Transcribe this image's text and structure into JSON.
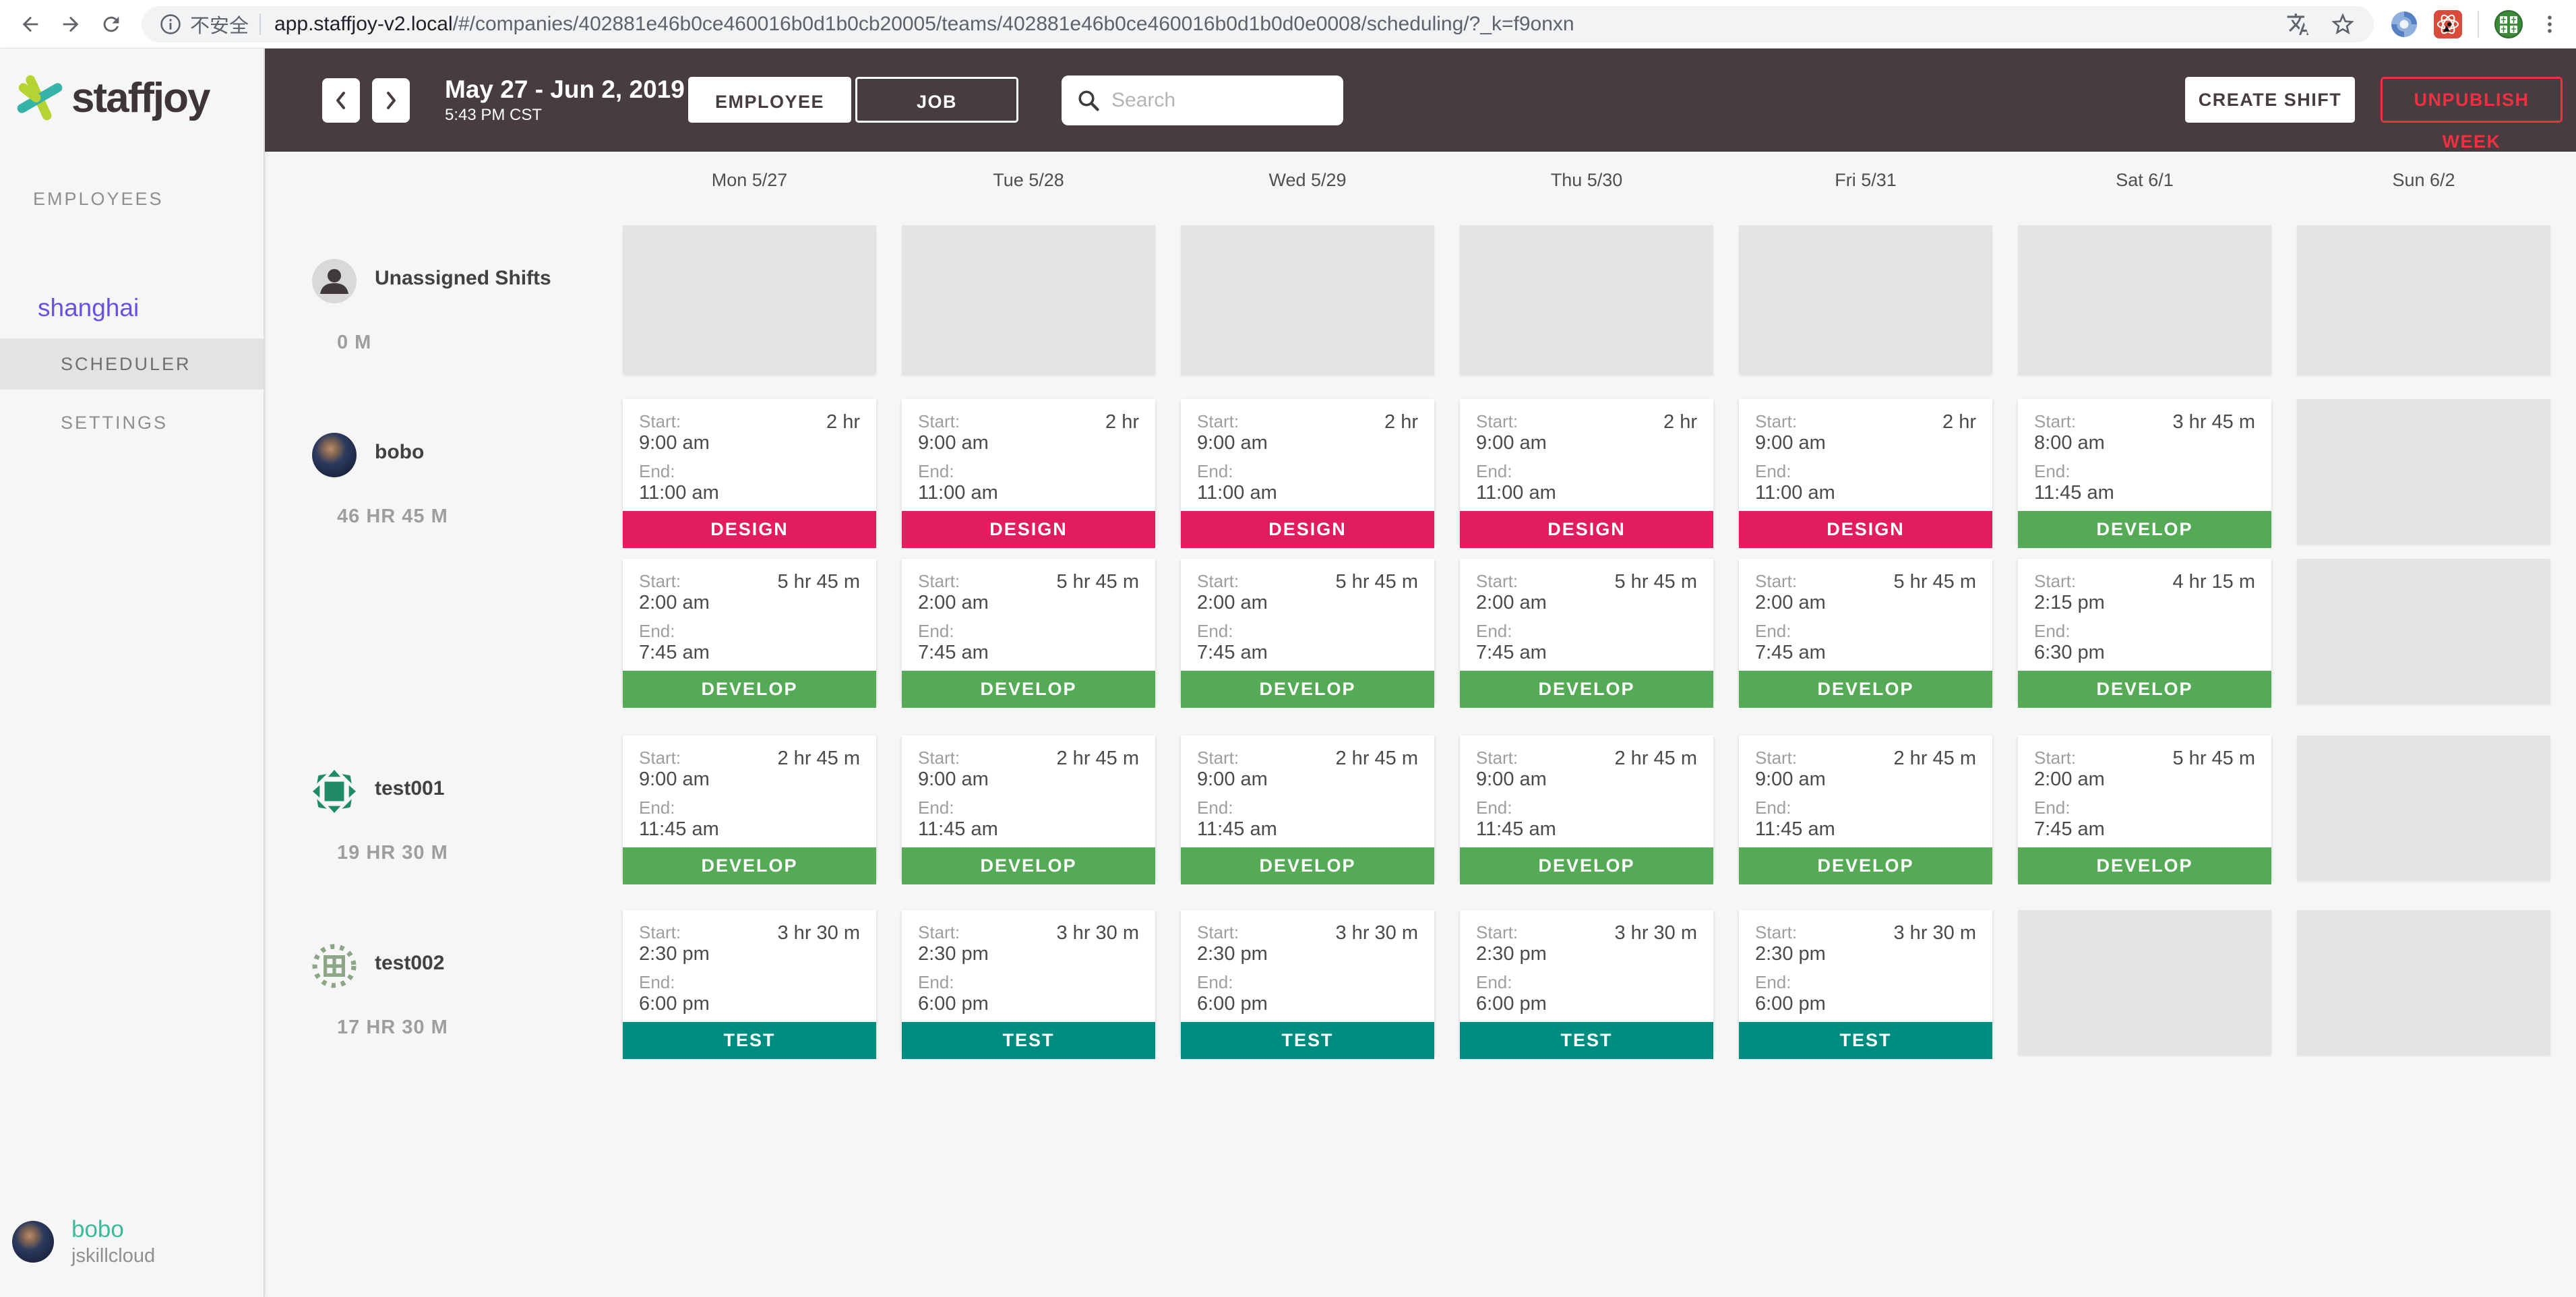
{
  "browser": {
    "security_label": "不安全",
    "url_host": "app.staffjoy-v2.local",
    "url_path": "/#/companies/402881e46b0ce460016b0d1b0cb20005/teams/402881e46b0ce460016b0d1b0d0e0008/scheduling/?_k=f9onxn"
  },
  "sidebar": {
    "logo_text": "staffjoy",
    "employees_label": "EMPLOYEES",
    "team_name": "shanghai",
    "scheduler_label": "SCHEDULER",
    "settings_label": "SETTINGS",
    "user": {
      "name": "bobo",
      "handle": "jskillcloud"
    }
  },
  "header": {
    "date_range": "May 27 - Jun 2, 2019",
    "current_time": "5:43 PM CST",
    "employee_toggle": "EMPLOYEE",
    "job_toggle": "JOB",
    "search_placeholder": "Search",
    "create_shift": "CREATE SHIFT",
    "unpublish_week": "UNPUBLISH WEEK"
  },
  "schedule": {
    "days": [
      "Mon 5/27",
      "Tue 5/28",
      "Wed 5/29",
      "Thu 5/30",
      "Fri 5/31",
      "Sat 6/1",
      "Sun 6/2"
    ],
    "start_label": "Start:",
    "end_label": "End:",
    "job_colors": {
      "DESIGN": "#e11d60",
      "DEVELOP": "#55ab55",
      "TEST": "#008d7f"
    },
    "rows": [
      {
        "id": "unassigned",
        "name": "Unassigned Shifts",
        "hours": "0 M",
        "avatar": "silhouette",
        "columns": [
          [
            {
              "type": "placeholder"
            }
          ],
          [
            {
              "type": "placeholder"
            }
          ],
          [
            {
              "type": "placeholder"
            }
          ],
          [
            {
              "type": "placeholder"
            }
          ],
          [
            {
              "type": "placeholder"
            }
          ],
          [
            {
              "type": "placeholder"
            }
          ],
          [
            {
              "type": "placeholder"
            }
          ]
        ]
      },
      {
        "id": "bobo",
        "name": "bobo",
        "hours": "46 HR 45 M",
        "avatar": "photo",
        "columns": [
          [
            {
              "type": "shift",
              "start": "9:00 am",
              "end": "11:00 am",
              "duration": "2 hr",
              "job": "DESIGN"
            },
            {
              "type": "shift",
              "start": "2:00 am",
              "end": "7:45 am",
              "duration": "5 hr 45 m",
              "job": "DEVELOP"
            }
          ],
          [
            {
              "type": "shift",
              "start": "9:00 am",
              "end": "11:00 am",
              "duration": "2 hr",
              "job": "DESIGN"
            },
            {
              "type": "shift",
              "start": "2:00 am",
              "end": "7:45 am",
              "duration": "5 hr 45 m",
              "job": "DEVELOP"
            }
          ],
          [
            {
              "type": "shift",
              "start": "9:00 am",
              "end": "11:00 am",
              "duration": "2 hr",
              "job": "DESIGN"
            },
            {
              "type": "shift",
              "start": "2:00 am",
              "end": "7:45 am",
              "duration": "5 hr 45 m",
              "job": "DEVELOP"
            }
          ],
          [
            {
              "type": "shift",
              "start": "9:00 am",
              "end": "11:00 am",
              "duration": "2 hr",
              "job": "DESIGN"
            },
            {
              "type": "shift",
              "start": "2:00 am",
              "end": "7:45 am",
              "duration": "5 hr 45 m",
              "job": "DEVELOP"
            }
          ],
          [
            {
              "type": "shift",
              "start": "9:00 am",
              "end": "11:00 am",
              "duration": "2 hr",
              "job": "DESIGN"
            },
            {
              "type": "shift",
              "start": "2:00 am",
              "end": "7:45 am",
              "duration": "5 hr 45 m",
              "job": "DEVELOP"
            }
          ],
          [
            {
              "type": "shift",
              "start": "8:00 am",
              "end": "11:45 am",
              "duration": "3 hr 45 m",
              "job": "DEVELOP"
            },
            {
              "type": "shift",
              "start": "2:15 pm",
              "end": "6:30 pm",
              "duration": "4 hr 15 m",
              "job": "DEVELOP"
            }
          ],
          [
            {
              "type": "placeholder"
            },
            {
              "type": "placeholder"
            }
          ]
        ]
      },
      {
        "id": "test001",
        "name": "test001",
        "hours": "19 HR 30 M",
        "avatar": "identicon-1",
        "columns": [
          [
            {
              "type": "shift",
              "start": "9:00 am",
              "end": "11:45 am",
              "duration": "2 hr 45 m",
              "job": "DEVELOP"
            }
          ],
          [
            {
              "type": "shift",
              "start": "9:00 am",
              "end": "11:45 am",
              "duration": "2 hr 45 m",
              "job": "DEVELOP"
            }
          ],
          [
            {
              "type": "shift",
              "start": "9:00 am",
              "end": "11:45 am",
              "duration": "2 hr 45 m",
              "job": "DEVELOP"
            }
          ],
          [
            {
              "type": "shift",
              "start": "9:00 am",
              "end": "11:45 am",
              "duration": "2 hr 45 m",
              "job": "DEVELOP"
            }
          ],
          [
            {
              "type": "shift",
              "start": "9:00 am",
              "end": "11:45 am",
              "duration": "2 hr 45 m",
              "job": "DEVELOP"
            }
          ],
          [
            {
              "type": "shift",
              "start": "2:00 am",
              "end": "7:45 am",
              "duration": "5 hr 45 m",
              "job": "DEVELOP"
            }
          ],
          [
            {
              "type": "placeholder"
            }
          ]
        ]
      },
      {
        "id": "test002",
        "name": "test002",
        "hours": "17 HR 30 M",
        "avatar": "identicon-2",
        "columns": [
          [
            {
              "type": "shift",
              "start": "2:30 pm",
              "end": "6:00 pm",
              "duration": "3 hr 30 m",
              "job": "TEST"
            }
          ],
          [
            {
              "type": "shift",
              "start": "2:30 pm",
              "end": "6:00 pm",
              "duration": "3 hr 30 m",
              "job": "TEST"
            }
          ],
          [
            {
              "type": "shift",
              "start": "2:30 pm",
              "end": "6:00 pm",
              "duration": "3 hr 30 m",
              "job": "TEST"
            }
          ],
          [
            {
              "type": "shift",
              "start": "2:30 pm",
              "end": "6:00 pm",
              "duration": "3 hr 30 m",
              "job": "TEST"
            }
          ],
          [
            {
              "type": "shift",
              "start": "2:30 pm",
              "end": "6:00 pm",
              "duration": "3 hr 30 m",
              "job": "TEST"
            }
          ],
          [
            {
              "type": "placeholder"
            }
          ],
          [
            {
              "type": "placeholder"
            }
          ]
        ]
      }
    ]
  }
}
